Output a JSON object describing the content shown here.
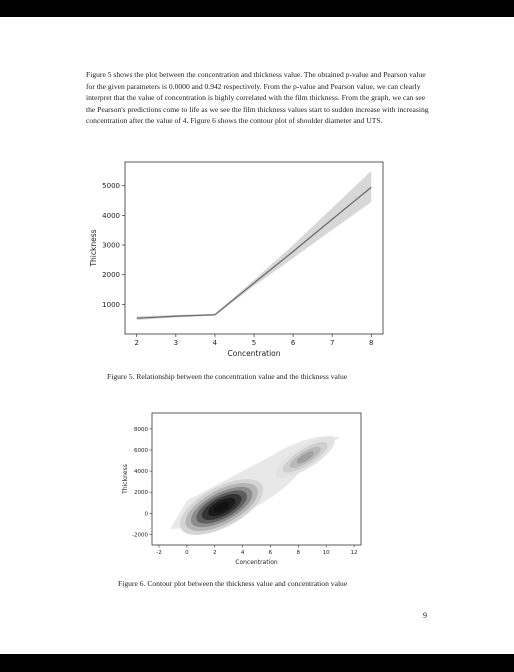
{
  "paragraph": "Figure 5 shows the plot between the concentration and thickness value. The obtained p-value and Pearson value for the given parameters is 0.0000 and 0.942 respectively. From the p-value and Pearson value, we can clearly interpret that the value of concentration is highly correlated with the film thickness. From the graph, we can see the Pearson's predictions come to life as we see the film thickness values start to sudden increase with increasing concentration after the value of 4. Figure 6 shows the contour plot of shoulder diameter and UTS.",
  "captions": {
    "figure5": "Figure 5. Relationship between the concentration value and the thickness value",
    "figure6": "Figure 6. Contour plot between the thickness value and concentration value"
  },
  "page_number": "9",
  "colors": {
    "line": "#6d6d6d",
    "band": "#d0d0d0",
    "contour_dark": "#111111"
  },
  "chart_data": [
    {
      "type": "line",
      "xlabel": "Concentration",
      "ylabel": "Thickness",
      "x": [
        2,
        3,
        4,
        5,
        6,
        7,
        8
      ],
      "y": [
        530,
        600,
        650,
        1720,
        2780,
        3870,
        4950
      ],
      "band_lower": [
        470,
        560,
        620,
        1620,
        2560,
        3510,
        4450
      ],
      "band_upper": [
        600,
        640,
        680,
        1820,
        3000,
        4250,
        5500
      ],
      "xlim": [
        1.7,
        8.3
      ],
      "ylim": [
        0,
        5800
      ],
      "xticks": [
        "2",
        "3",
        "4",
        "5",
        "6",
        "7",
        "8"
      ],
      "yticks": [
        "1000",
        "2000",
        "3000",
        "4000",
        "5000"
      ],
      "grid": false
    },
    {
      "type": "heatmap",
      "xlabel": "Concentration",
      "ylabel": "Thickness",
      "xlim": [
        -2.5,
        12.5
      ],
      "ylim": [
        -3000,
        9500
      ],
      "xticks": [
        "-2",
        "0",
        "2",
        "4",
        "6",
        "8",
        "10",
        "12"
      ],
      "yticks": [
        "-2000",
        "0",
        "2000",
        "4000",
        "6000",
        "8000"
      ],
      "density_centers": [
        {
          "x": 2.5,
          "y": 600,
          "weight": 1.0
        },
        {
          "x": 8.5,
          "y": 5300,
          "weight": 0.35
        }
      ]
    }
  ]
}
